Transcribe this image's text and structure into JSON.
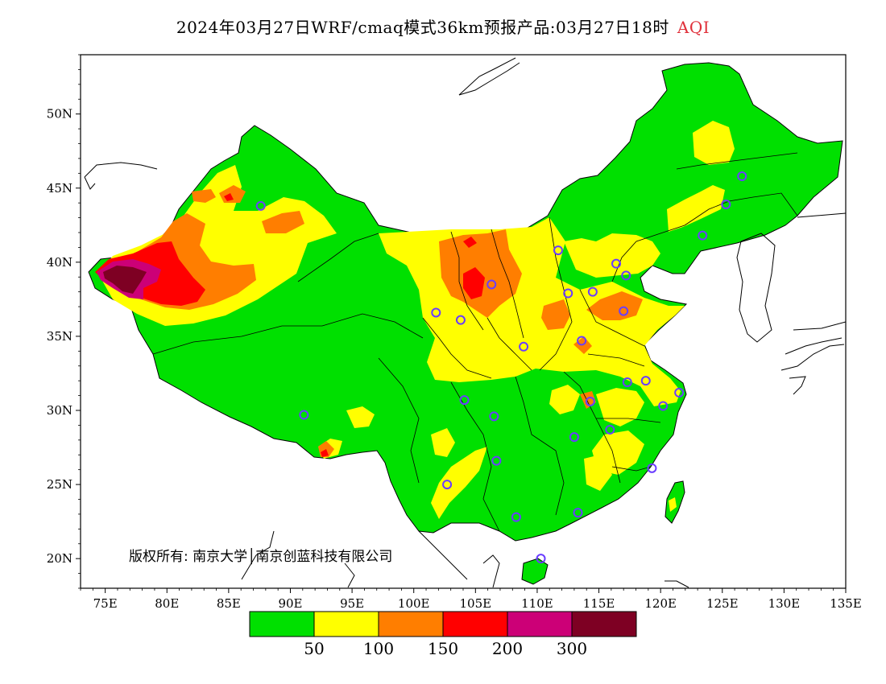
{
  "header": {
    "title": "2024年03月27日WRF/cmaq模式36km预报产品:03月27日18时",
    "product": "AQI"
  },
  "map": {
    "projection": "lat-lon",
    "lon_range": [
      73,
      135
    ],
    "lat_range": [
      18,
      54
    ],
    "x_ticks": [
      "75E",
      "80E",
      "85E",
      "90E",
      "95E",
      "100E",
      "105E",
      "110E",
      "115E",
      "120E",
      "125E",
      "130E",
      "135E"
    ],
    "x_tick_values": [
      75,
      80,
      85,
      90,
      95,
      100,
      105,
      110,
      115,
      120,
      125,
      130,
      135
    ],
    "y_ticks": [
      "20N",
      "25N",
      "30N",
      "35N",
      "40N",
      "45N",
      "50N"
    ],
    "y_tick_values": [
      20,
      25,
      30,
      35,
      40,
      45,
      50
    ],
    "copyright": "版权所有: 南京大学│南京创蓝科技有限公司",
    "stations": [
      [
        87.6,
        43.8
      ],
      [
        91.1,
        29.7
      ],
      [
        101.8,
        36.6
      ],
      [
        103.8,
        36.1
      ],
      [
        106.3,
        38.5
      ],
      [
        111.7,
        40.8
      ],
      [
        112.5,
        37.9
      ],
      [
        114.5,
        38.0
      ],
      [
        116.4,
        39.9
      ],
      [
        117.2,
        39.1
      ],
      [
        117.0,
        36.7
      ],
      [
        113.6,
        34.7
      ],
      [
        108.9,
        34.3
      ],
      [
        104.1,
        30.7
      ],
      [
        106.5,
        29.6
      ],
      [
        106.7,
        26.6
      ],
      [
        102.7,
        25.0
      ],
      [
        108.3,
        22.8
      ],
      [
        113.3,
        23.1
      ],
      [
        110.3,
        20.0
      ],
      [
        113.0,
        28.2
      ],
      [
        114.3,
        30.6
      ],
      [
        115.9,
        28.7
      ],
      [
        117.3,
        31.9
      ],
      [
        118.8,
        32.0
      ],
      [
        121.5,
        31.2
      ],
      [
        120.2,
        30.3
      ],
      [
        119.3,
        26.1
      ],
      [
        123.4,
        41.8
      ],
      [
        125.3,
        43.9
      ],
      [
        126.6,
        45.8
      ]
    ]
  },
  "legend": {
    "colors": [
      "#00e000",
      "#ffff00",
      "#ff7e00",
      "#ff0000",
      "#cc0077",
      "#7e0023"
    ],
    "labels": [
      "50",
      "100",
      "150",
      "200",
      "300"
    ]
  }
}
